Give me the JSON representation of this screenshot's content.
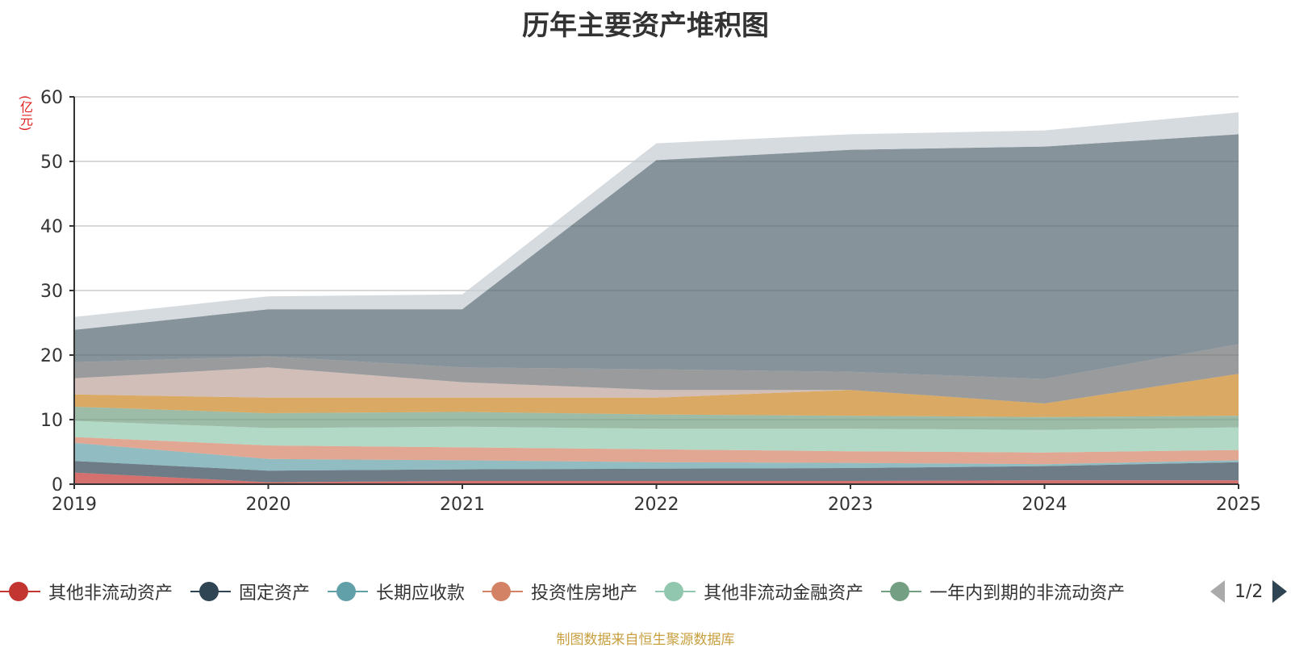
{
  "chart_data": {
    "type": "area",
    "stacked": true,
    "title": "历年主要资产堆积图",
    "ylabel": "(亿元)",
    "x": [
      "2019",
      "2020",
      "2021",
      "2022",
      "2023",
      "2024",
      "2025"
    ],
    "ylim": [
      0,
      60
    ],
    "yticks": [
      0,
      10,
      20,
      30,
      40,
      50,
      60
    ],
    "grid": true,
    "legend_position": "bottom",
    "series": [
      {
        "name": "其他非流动资产",
        "color": "#c23531",
        "values": [
          1.8,
          0.3,
          0.5,
          0.5,
          0.5,
          0.6,
          0.6
        ]
      },
      {
        "name": "固定资产",
        "color": "#2f4554",
        "values": [
          1.8,
          1.8,
          1.8,
          1.9,
          2.0,
          2.2,
          2.8
        ]
      },
      {
        "name": "长期应收款",
        "color": "#61a0a8",
        "values": [
          2.8,
          1.8,
          1.4,
          1.0,
          0.8,
          0.3,
          0.3
        ]
      },
      {
        "name": "投资性房地产",
        "color": "#d48265",
        "values": [
          0.9,
          2.1,
          2.0,
          2.0,
          1.8,
          1.8,
          1.6
        ]
      },
      {
        "name": "其他非流动金融资产",
        "color": "#91c7ae",
        "values": [
          2.5,
          2.7,
          3.2,
          3.2,
          3.5,
          3.5,
          3.5
        ]
      },
      {
        "name": "一年内到期的非流动资产",
        "color": "#749f83",
        "values": [
          2.2,
          2.3,
          2.3,
          2.2,
          2.0,
          2.0,
          1.8
        ]
      },
      {
        "name": "",
        "color": "#ca8622",
        "values": [
          1.9,
          2.4,
          2.2,
          2.6,
          4.0,
          2.1,
          6.5
        ]
      },
      {
        "name": "",
        "color": "#bda29a",
        "values": [
          2.5,
          4.7,
          2.4,
          1.2,
          0,
          0,
          0
        ]
      },
      {
        "name": "",
        "color": "#6e7074",
        "values": [
          2.5,
          1.7,
          2.3,
          3.2,
          2.8,
          3.8,
          4.6
        ]
      },
      {
        "name": "",
        "color": "#546570",
        "values": [
          5.0,
          7.3,
          9.0,
          32.4,
          34.4,
          36.0,
          32.5
        ]
      },
      {
        "name": "",
        "color": "#c4ccd3",
        "values": [
          2.0,
          2.0,
          2.3,
          2.6,
          2.4,
          2.5,
          3.4
        ]
      }
    ]
  },
  "pager": {
    "text": "1/2"
  },
  "source_note": "制图数据来自恒生聚源数据库"
}
